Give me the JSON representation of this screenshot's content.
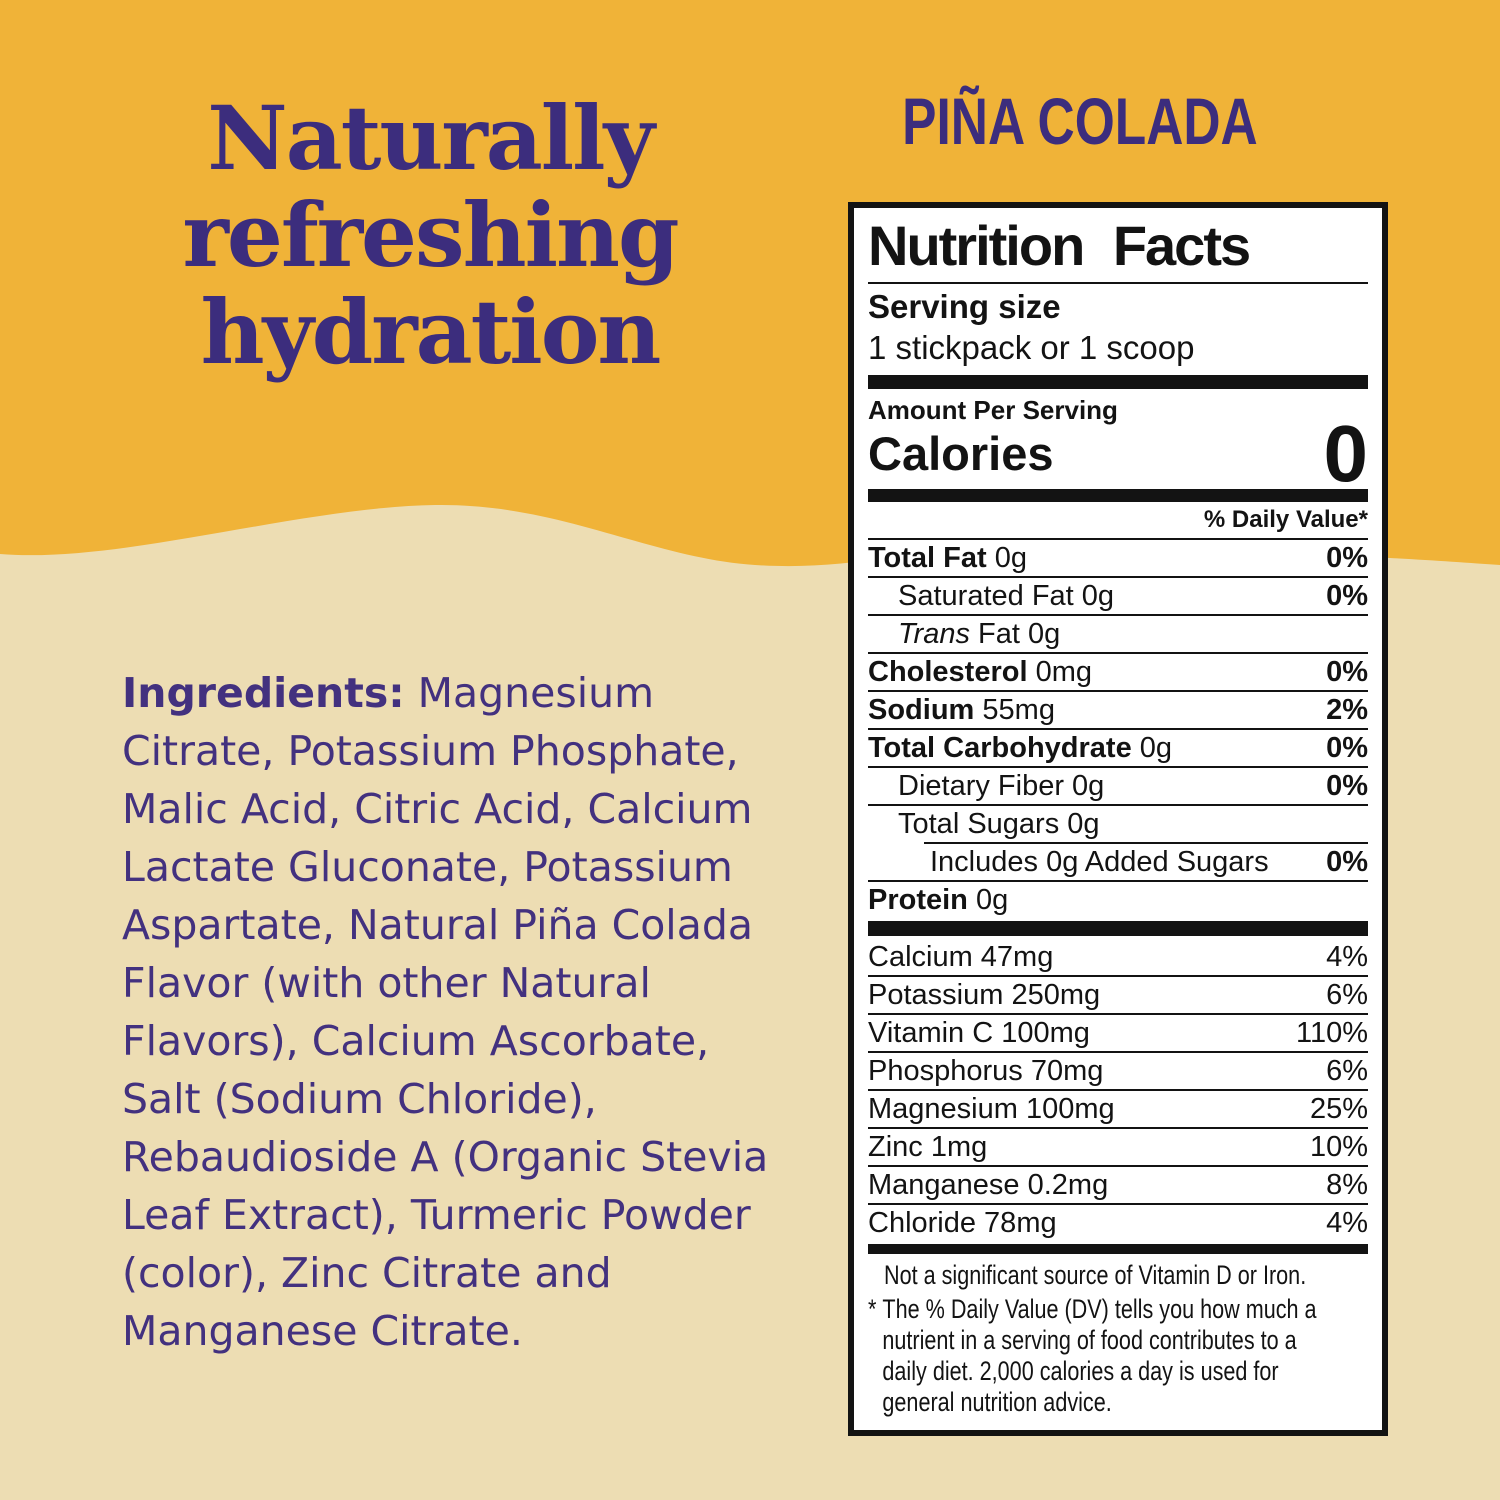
{
  "colors": {
    "background_orange": "#F0B338",
    "background_cream": "#EDDDB3",
    "brand_purple": "#3C2D7D",
    "label_black": "#131313",
    "label_white": "#FFFFFF"
  },
  "hero": {
    "heading": "Naturally\nrefreshing\nhydration"
  },
  "flavor_title": "PIÑA COLADA",
  "ingredients": {
    "label": "Ingredients:",
    "text": " Magnesium\nCitrate, Potassium Phosphate,\nMalic Acid, Citric Acid, Calcium\nLactate Gluconate, Potassium\nAspartate, Natural Piña Colada\nFlavor (with other Natural\nFlavors), Calcium Ascorbate,\nSalt (Sodium Chloride),\nRebaudioside A (Organic Stevia\nLeaf Extract), Turmeric Powder\n(color), Zinc Citrate and\nManganese Citrate."
  },
  "nutrition": {
    "title": "Nutrition Facts",
    "serving_size_label": "Serving size",
    "serving_size_value": "1 stickpack or 1 scoop",
    "amount_per_serving": "Amount Per Serving",
    "calories_label": "Calories",
    "calories_value": "0",
    "daily_value_header": "% Daily Value*",
    "rows": [
      {
        "b": "Total Fat",
        "t": " 0g",
        "dv": "0%",
        "dvb": true,
        "ind": 0
      },
      {
        "t": "Saturated Fat 0g",
        "dv": "0%",
        "dvb": true,
        "ind": 1
      },
      {
        "i": "Trans",
        "t": " Fat 0g",
        "dv": "",
        "ind": 1
      },
      {
        "b": "Cholesterol",
        "t": " 0mg",
        "dv": "0%",
        "dvb": true,
        "ind": 0
      },
      {
        "b": "Sodium",
        "t": " 55mg",
        "dv": "2%",
        "dvb": true,
        "ind": 0
      },
      {
        "b": "Total Carbohydrate",
        "t": " 0g",
        "dv": "0%",
        "dvb": true,
        "ind": 0
      },
      {
        "t": "Dietary Fiber 0g",
        "dv": "0%",
        "dvb": true,
        "ind": 1
      },
      {
        "t": "Total Sugars 0g",
        "dv": "",
        "ind": 1
      },
      {
        "t": "Includes 0g Added Sugars",
        "dv": "0%",
        "dvb": true,
        "ind": 2
      },
      {
        "b": "Protein",
        "t": " 0g",
        "dv": "",
        "ind": 0
      }
    ],
    "minerals": [
      {
        "t": "Calcium 47mg",
        "dv": "4%"
      },
      {
        "t": "Potassium 250mg",
        "dv": "6%"
      },
      {
        "t": "Vitamin C 100mg",
        "dv": "110%"
      },
      {
        "t": "Phosphorus 70mg",
        "dv": "6%"
      },
      {
        "t": "Magnesium 100mg",
        "dv": "25%"
      },
      {
        "t": "Zinc 1mg",
        "dv": "10%"
      },
      {
        "t": "Manganese 0.2mg",
        "dv": "8%"
      },
      {
        "t": "Chloride 78mg",
        "dv": "4%"
      }
    ],
    "note": "Not a significant source of Vitamin D or Iron.",
    "footnote_marker": "*",
    "footnote": "The % Daily Value (DV) tells you how much a\nnutrient in a serving of food contributes to a\ndaily diet. 2,000 calories a day is used for\ngeneral nutrition advice."
  }
}
